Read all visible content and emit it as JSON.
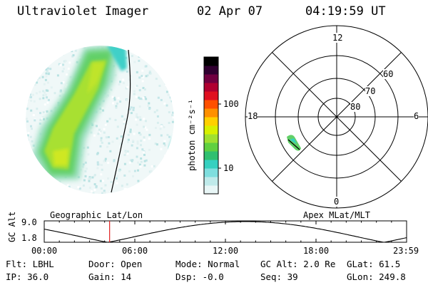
{
  "header": {
    "title": "Ultraviolet Imager",
    "date": "02 Apr 07",
    "time": "04:19:59 UT"
  },
  "colorbar": {
    "unit_label": "photon cm⁻²s⁻¹",
    "tick_labels": [
      "100",
      "10"
    ],
    "colors": [
      "#e8f6f6",
      "#bfeaea",
      "#7fdede",
      "#36d0c0",
      "#30c070",
      "#60d040",
      "#a0e030",
      "#d8f000",
      "#ffd000",
      "#ff9000",
      "#ff5000",
      "#e01020",
      "#b00030",
      "#700040",
      "#300030",
      "#000000"
    ]
  },
  "polar": {
    "mlt_labels": [
      "12",
      "18",
      "6",
      "0"
    ],
    "lat_labels": [
      "60",
      "70",
      "80"
    ]
  },
  "geo_label": "Geographic Lat/Lon",
  "apex_label": "Apex MLat/MLT",
  "altitude_plot": {
    "ylabel": "GC Alt",
    "y_ticks": [
      "9.0",
      "1.8"
    ],
    "x_ticks": [
      "00:00",
      "06:00",
      "12:00",
      "18:00",
      "23:59"
    ],
    "current_time_marker_hours": 4.33,
    "marker_color": "#e02020"
  },
  "metadata": {
    "flt": "Flt: LBHL",
    "door": "Door: Open",
    "mode": "Mode: Normal",
    "gc_alt": "GC Alt: 2.0 Re",
    "glat": "GLat: 61.5",
    "ip": "IP: 36.0",
    "gain": "Gain: 14",
    "dsp": "Dsp: -0.0",
    "seq": "Seq: 39",
    "glon": "GLon: 249.8"
  }
}
